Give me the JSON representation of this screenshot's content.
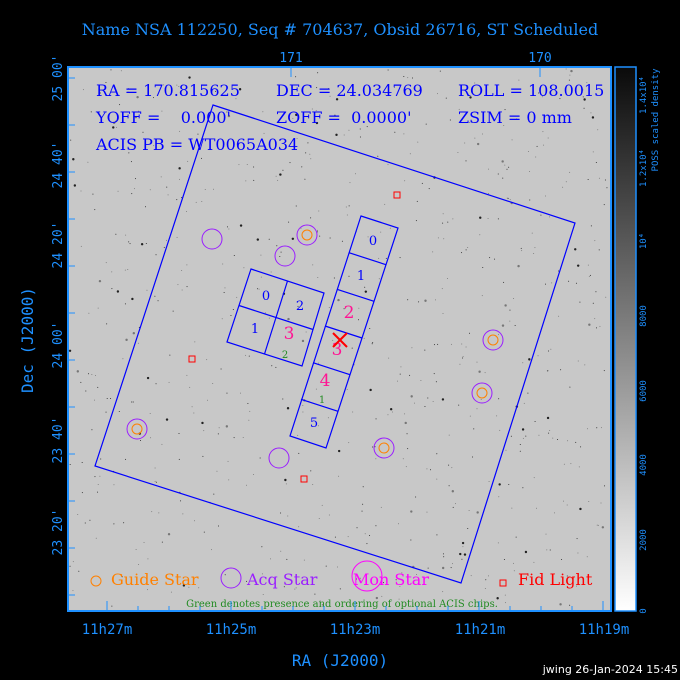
{
  "title": "Name NSA 112250, Seq # 704637, Obsid 26716, ST Scheduled",
  "colors": {
    "axis": "#1e90ff",
    "overlay": "#0000ff",
    "guide": "#ff8000",
    "acq": "#9a1eff",
    "mon": "#ff00ff",
    "fid": "#ff0000",
    "green": "#228b22",
    "chip_red": "#ff1493"
  },
  "info": {
    "ra": "RA = 170.815625",
    "dec": "DEC = 24.034769",
    "roll": "ROLL = 108.0015",
    "yoff": "YOFF =    0.000'",
    "zoff": "ZOFF =  0.0000'",
    "zsim": "ZSIM = 0 mm",
    "acis_pb": "ACIS PB = WT0065A034"
  },
  "axes": {
    "top_ticks": [
      "171",
      "170"
    ],
    "bottom_ticks": [
      "11h27m",
      "11h25m",
      "11h23m",
      "11h21m",
      "11h19m"
    ],
    "left_ticks": [
      "25 00'",
      "24 40'",
      "24 20'",
      "24 00'",
      "23 40'",
      "23 20'"
    ],
    "xlabel": "RA (J2000)",
    "ylabel": "Dec (J2000)"
  },
  "colorbar": {
    "label": "POSS scaled density",
    "ticks": [
      "0",
      "2000",
      "4000",
      "6000",
      "8000",
      "10⁴",
      "1.2x10⁴",
      "1.4x10⁴"
    ]
  },
  "chips": {
    "i_array": [
      "0",
      "2",
      "1",
      "3"
    ],
    "s_array": [
      "0",
      "1",
      "2",
      "3",
      "4",
      "5"
    ],
    "optional": [
      "2",
      "1"
    ]
  },
  "legend": {
    "guide": "Guide Star",
    "acq": "Acq Star",
    "mon": "Mon Star",
    "fid": "Fid Light",
    "note": "Green denotes presence and ordering of optional ACIS chips."
  },
  "footer": "jwing 26-Jan-2024 15:45"
}
